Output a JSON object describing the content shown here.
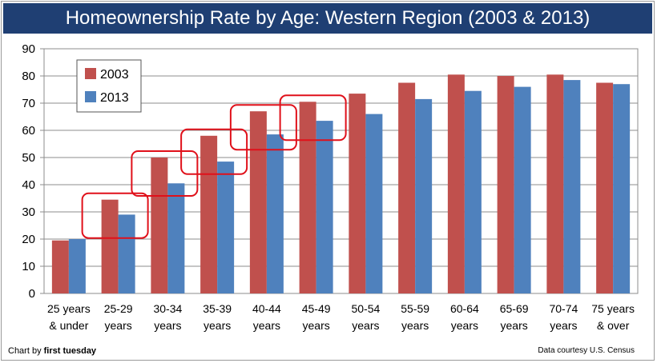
{
  "chart_data": {
    "type": "bar",
    "title": "Homeownership Rate by Age: Western Region (2003 & 2013)",
    "categories": [
      [
        "25 years",
        "& under"
      ],
      [
        "25-29",
        "years"
      ],
      [
        "30-34",
        "years"
      ],
      [
        "35-39",
        "years"
      ],
      [
        "40-44",
        "years"
      ],
      [
        "45-49",
        "years"
      ],
      [
        "50-54",
        "years"
      ],
      [
        "55-59",
        "years"
      ],
      [
        "60-64",
        "years"
      ],
      [
        "65-69",
        "years"
      ],
      [
        "70-74",
        "years"
      ],
      [
        "75 years",
        "& over"
      ]
    ],
    "series": [
      {
        "name": "2003",
        "color": "#c0504d",
        "values": [
          19.5,
          34.5,
          50,
          58,
          67,
          70.5,
          73.5,
          77.5,
          80.5,
          80,
          80.5,
          77.5
        ]
      },
      {
        "name": "2013",
        "color": "#4f81bd",
        "values": [
          20,
          29,
          40.5,
          48.5,
          58.5,
          63.5,
          66,
          71.5,
          74.5,
          76,
          78.5,
          77
        ]
      }
    ],
    "ylim": [
      0,
      90
    ],
    "yticks": [
      0,
      10,
      20,
      30,
      40,
      50,
      60,
      70,
      80,
      90
    ],
    "grid": true,
    "legend": "top-left",
    "highlighted_categories": [
      1,
      2,
      3,
      4,
      5
    ],
    "highlight_color": "#e0101a"
  },
  "credits": {
    "left_prefix": "Chart by",
    "left_brand": "first tuesday",
    "right": "Data courtesy U.S. Census"
  }
}
